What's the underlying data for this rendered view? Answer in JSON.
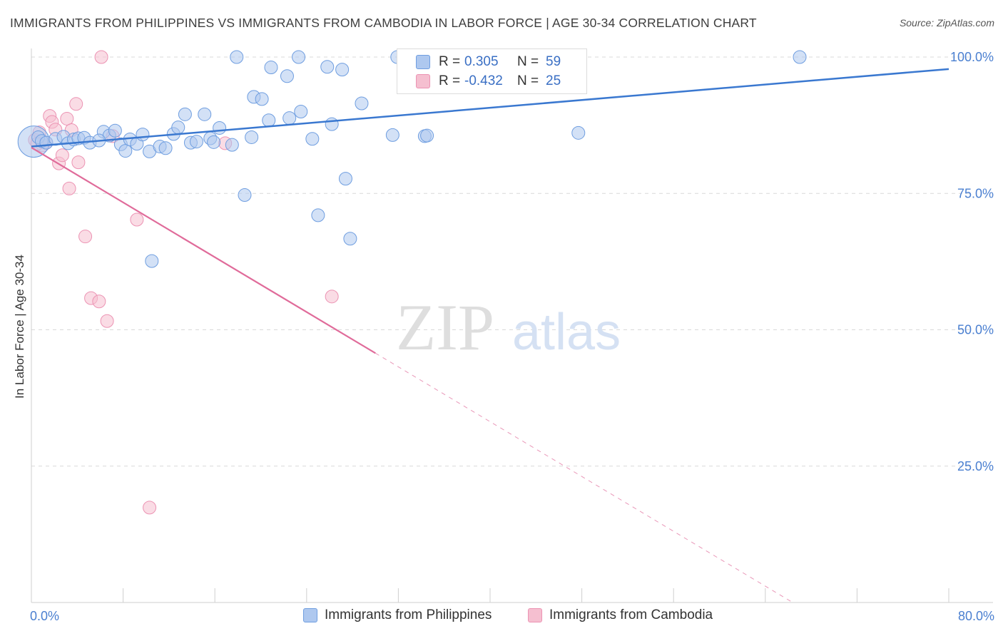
{
  "title": "IMMIGRANTS FROM PHILIPPINES VS IMMIGRANTS FROM CAMBODIA IN LABOR FORCE | AGE 30-34 CORRELATION CHART",
  "source": "Source: ZipAtlas.com",
  "watermark": {
    "zip": "ZIP",
    "atlas": "atlas"
  },
  "colors": {
    "blue_fill": "#aec8ef",
    "blue_stroke": "#6f9ee0",
    "blue_line": "#3a78d0",
    "pink_fill": "#f5bfd0",
    "pink_stroke": "#ec93b3",
    "pink_line": "#e06b9a",
    "tick_text": "#4a7fd0",
    "grid": "#d9d9d9"
  },
  "legend": {
    "rows": [
      {
        "r_label": "R =",
        "r_value": "0.305",
        "n_label": "N =",
        "n_value": "59"
      },
      {
        "r_label": "R =",
        "r_value": "-0.432",
        "n_label": "N =",
        "n_value": "25"
      }
    ]
  },
  "bottom_legend": [
    {
      "label": "Immigrants from Philippines"
    },
    {
      "label": "Immigrants from Cambodia"
    }
  ],
  "chart_data": {
    "type": "scatter",
    "title": "IMMIGRANTS FROM PHILIPPINES VS IMMIGRANTS FROM CAMBODIA IN LABOR FORCE | AGE 30-34 CORRELATION CHART",
    "xlabel": "",
    "ylabel": "In Labor Force | Age 30-34",
    "xlim": [
      0,
      80
    ],
    "ylim": [
      0,
      105
    ],
    "x_tick_labels": [
      {
        "value": 0,
        "label": "0.0%"
      },
      {
        "value": 80,
        "label": "80.0%"
      }
    ],
    "y_tick_labels": [
      {
        "value": 100,
        "label": "100.0%"
      },
      {
        "value": 75,
        "label": "75.0%"
      },
      {
        "value": 50,
        "label": "50.0%"
      },
      {
        "value": 25,
        "label": "25.0%"
      }
    ],
    "grid": true,
    "series": [
      {
        "name": "Immigrants from Philippines",
        "color": "blue",
        "trend": {
          "x0": 0,
          "y0": 83.6,
          "x1": 80,
          "y1": 97.8,
          "dashed_from_x": null
        },
        "points": [
          [
            0.2,
            84.5,
            22
          ],
          [
            0.6,
            85.3,
            9
          ],
          [
            0.9,
            84.6,
            9
          ],
          [
            1.3,
            84.3,
            9
          ],
          [
            2.1,
            85.0,
            9
          ],
          [
            2.8,
            85.4,
            9
          ],
          [
            3.2,
            84.2,
            9
          ],
          [
            3.7,
            84.9,
            9
          ],
          [
            4.1,
            85.1,
            9
          ],
          [
            4.6,
            85.2,
            9
          ],
          [
            5.1,
            84.3,
            9
          ],
          [
            6.3,
            86.3,
            9
          ],
          [
            6.8,
            85.6,
            9
          ],
          [
            7.3,
            86.5,
            9
          ],
          [
            7.8,
            84.0,
            9
          ],
          [
            8.2,
            82.8,
            9
          ],
          [
            8.6,
            84.9,
            9
          ],
          [
            9.2,
            84.1,
            9
          ],
          [
            9.7,
            85.8,
            9
          ],
          [
            10.3,
            82.7,
            9
          ],
          [
            11.2,
            83.6,
            9
          ],
          [
            11.7,
            83.3,
            9
          ],
          [
            12.4,
            85.9,
            9
          ],
          [
            12.8,
            87.1,
            9
          ],
          [
            13.4,
            89.5,
            9
          ],
          [
            13.9,
            84.3,
            9
          ],
          [
            14.4,
            84.5,
            9
          ],
          [
            15.1,
            89.5,
            9
          ],
          [
            15.6,
            85.1,
            9
          ],
          [
            16.4,
            87.0,
            9
          ],
          [
            17.5,
            83.9,
            9
          ],
          [
            17.9,
            100.0,
            9
          ],
          [
            18.6,
            74.7,
            9
          ],
          [
            19.2,
            85.3,
            9
          ],
          [
            19.4,
            92.7,
            9
          ],
          [
            20.1,
            92.3,
            9
          ],
          [
            20.7,
            88.4,
            9
          ],
          [
            20.9,
            98.1,
            9
          ],
          [
            22.3,
            96.5,
            9
          ],
          [
            22.5,
            88.8,
            9
          ],
          [
            23.3,
            100.0,
            9
          ],
          [
            23.5,
            90.0,
            9
          ],
          [
            24.5,
            85.0,
            9
          ],
          [
            25.0,
            71.0,
            9
          ],
          [
            25.8,
            98.2,
            9
          ],
          [
            26.2,
            87.7,
            9
          ],
          [
            27.1,
            97.7,
            9
          ],
          [
            27.4,
            77.7,
            9
          ],
          [
            27.8,
            66.7,
            9
          ],
          [
            28.8,
            91.5,
            9
          ],
          [
            31.5,
            85.7,
            9
          ],
          [
            31.9,
            100.0,
            9
          ],
          [
            34.3,
            85.5,
            9
          ],
          [
            34.5,
            85.6,
            9
          ],
          [
            47.7,
            86.1,
            9
          ],
          [
            67.0,
            100.0,
            9
          ],
          [
            10.5,
            62.6,
            9
          ],
          [
            5.9,
            84.7,
            9
          ],
          [
            15.9,
            84.4,
            9
          ]
        ]
      },
      {
        "name": "Immigrants from Cambodia",
        "color": "pink",
        "trend": {
          "x0": 0,
          "y0": 83.4,
          "x1": 80,
          "y1": -17.1,
          "dashed_from_x": 30.0
        },
        "points": [
          [
            0.3,
            84.8,
            9
          ],
          [
            0.7,
            86.2,
            9
          ],
          [
            1.0,
            83.8,
            9
          ],
          [
            1.3,
            84.3,
            9
          ],
          [
            1.6,
            89.2,
            9
          ],
          [
            1.8,
            88.1,
            9
          ],
          [
            2.1,
            86.7,
            9
          ],
          [
            2.4,
            80.5,
            9
          ],
          [
            2.7,
            82.0,
            9
          ],
          [
            3.1,
            88.7,
            9
          ],
          [
            3.3,
            75.9,
            9
          ],
          [
            3.5,
            86.6,
            9
          ],
          [
            3.9,
            91.4,
            9
          ],
          [
            4.1,
            80.7,
            9
          ],
          [
            4.7,
            67.1,
            9
          ],
          [
            5.2,
            55.8,
            9
          ],
          [
            5.9,
            55.2,
            9
          ],
          [
            6.1,
            100.0,
            9
          ],
          [
            6.6,
            51.6,
            9
          ],
          [
            7.1,
            85.5,
            9
          ],
          [
            9.2,
            70.2,
            9
          ],
          [
            10.3,
            17.4,
            9
          ],
          [
            16.9,
            84.2,
            9
          ],
          [
            26.2,
            56.1,
            9
          ],
          [
            0.5,
            84.1,
            9
          ]
        ]
      }
    ]
  }
}
